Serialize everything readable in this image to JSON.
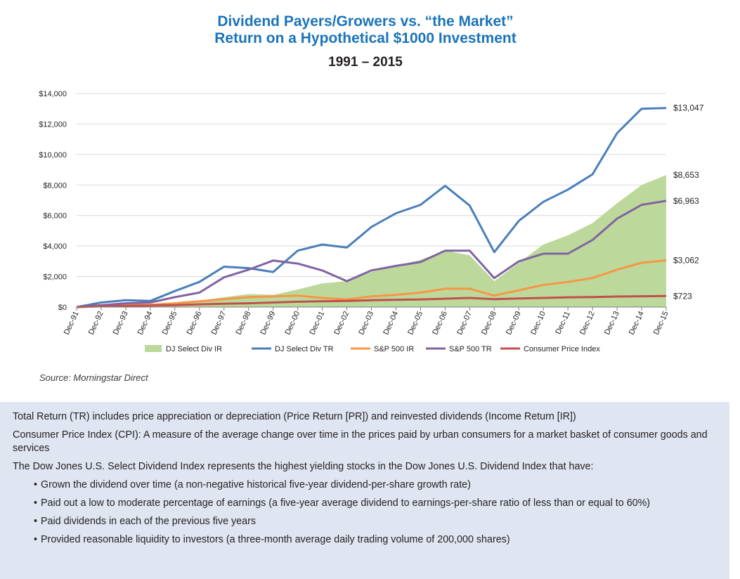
{
  "header": {
    "title_line1": "Dividend Payers/Growers vs. “the Market”",
    "title_line2": "Return on a Hypothetical $1000 Investment",
    "subtitle": "1991 – 2015"
  },
  "source": "Source: Morningstar Direct",
  "notes": {
    "p1": "Total Return (TR) includes price appreciation or depreciation  (Price Return [PR]) and reinvested dividends (Income Return [IR])",
    "p2": "Consumer Price Index (CPI): A measure of the average change over time in the prices paid by urban consumers for a market basket of consumer goods and services",
    "p3": "The Dow Jones U.S. Select Dividend Index represents the highest yielding stocks in the Dow Jones U.S. Dividend Index that have:",
    "bullets": [
      "Grown the dividend over time (a non-negative historical five-year dividend-per-share growth rate)",
      "Paid out a low to moderate percentage of earnings (a five-year average dividend to earnings-per-share ratio of less than or equal to 60%)",
      "Paid dividends in each of the previous five years",
      "Provided reasonable liquidity to investors (a three-month average daily trading volume of 200,000 shares)"
    ]
  },
  "chart_data": {
    "type": "line",
    "title": "",
    "xlabel": "",
    "ylabel": "",
    "ylim": [
      0,
      14000
    ],
    "yticks": [
      0,
      2000,
      4000,
      6000,
      8000,
      10000,
      12000,
      14000
    ],
    "ytick_labels": [
      "$0",
      "$2,000",
      "$4,000",
      "$6,000",
      "$8,000",
      "$10,000",
      "$12,000",
      "$14,000"
    ],
    "x_range": [
      1991.92,
      2015.92
    ],
    "x": [
      1991.92,
      1992.92,
      1993.92,
      1994.92,
      1995.92,
      1996.92,
      1997.92,
      1998.92,
      1999.92,
      2000.92,
      2001.92,
      2002.92,
      2003.92,
      2004.92,
      2005.92,
      2006.92,
      2007.92,
      2008.92,
      2009.92,
      2010.92,
      2011.92,
      2012.92,
      2013.92,
      2014.92,
      2015.92
    ],
    "categories": [
      "Dec-91",
      "Dec-92",
      "Dec-93",
      "Dec-94",
      "Dec-95",
      "Dec-96",
      "Dec-97",
      "Dec-98",
      "Dec-99",
      "Dec-00",
      "Dec-01",
      "Dec-02",
      "Dec-03",
      "Dec-04",
      "Dec-05",
      "Dec-06",
      "Dec-07",
      "Dec-08",
      "Dec-09",
      "Dec-10",
      "Dec-11",
      "Dec-12",
      "Dec-13",
      "Dec-14",
      "Dec-15"
    ],
    "grid": true,
    "legend": "bottom",
    "series": [
      {
        "name": "DJ Select Div IR",
        "kind": "area",
        "color": "#bcd89b",
        "values": [
          0,
          50,
          100,
          150,
          250,
          400,
          650,
          850,
          800,
          1150,
          1550,
          1700,
          2300,
          2700,
          3100,
          3700,
          3400,
          1700,
          2900,
          4100,
          4700,
          5500,
          6800,
          8000,
          8653
        ]
      },
      {
        "name": "DJ Select Div TR",
        "kind": "line",
        "color": "#4a7ebb",
        "values": [
          0,
          300,
          450,
          400,
          1050,
          1650,
          2650,
          2550,
          2300,
          3700,
          4100,
          3900,
          5250,
          6150,
          6700,
          7950,
          6650,
          3600,
          5650,
          6900,
          7700,
          8700,
          11400,
          13000,
          13047
        ]
      },
      {
        "name": "S&P 500 IR",
        "kind": "line",
        "color": "#f79646",
        "values": [
          0,
          60,
          120,
          150,
          250,
          380,
          520,
          650,
          700,
          750,
          600,
          500,
          700,
          800,
          950,
          1200,
          1200,
          750,
          1100,
          1450,
          1650,
          1900,
          2450,
          2900,
          3062
        ]
      },
      {
        "name": "S&P 500 TR",
        "kind": "line",
        "color": "#8064a2",
        "values": [
          0,
          120,
          250,
          300,
          650,
          950,
          1950,
          2450,
          3050,
          2850,
          2400,
          1700,
          2400,
          2700,
          2950,
          3700,
          3700,
          1900,
          3000,
          3500,
          3500,
          4400,
          5800,
          6700,
          6963
        ]
      },
      {
        "name": "Consumer Price Index",
        "kind": "line",
        "color": "#c0504d",
        "values": [
          0,
          50,
          80,
          100,
          130,
          180,
          220,
          250,
          300,
          350,
          380,
          400,
          450,
          480,
          500,
          550,
          600,
          520,
          560,
          600,
          640,
          660,
          690,
          710,
          723
        ]
      }
    ],
    "end_labels": [
      "$13,047",
      "$8,653",
      "$6,963",
      "$3,062",
      "$723"
    ]
  }
}
